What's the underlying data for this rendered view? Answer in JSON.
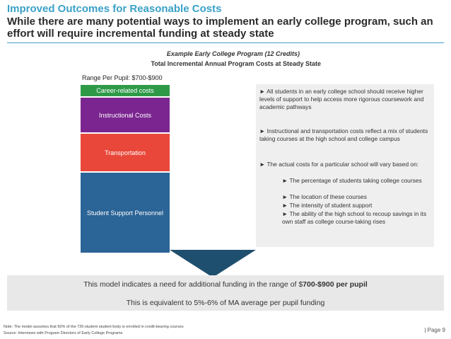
{
  "header": {
    "title": "Improved Outcomes for Reasonable Costs",
    "subtitle": "While there are many potential ways to implement an early college program, such an effort will require incremental funding at steady state"
  },
  "chart": {
    "title": "Example Early College Program (12 Credits)",
    "subtitle": "Total Incremental Annual Program Costs at Steady State",
    "range_label": "Range Per Pupil: $700-$900"
  },
  "chart_data": {
    "type": "bar",
    "stacked": true,
    "categories": [
      "Range Per Pupil: $700-$900"
    ],
    "series": [
      {
        "name": "Career-related costs",
        "color": "#2e9a48",
        "share": 0.07
      },
      {
        "name": "Instructional Costs",
        "color": "#7b2690",
        "share": 0.21
      },
      {
        "name": "Transportation",
        "color": "#e8473a",
        "share": 0.23
      },
      {
        "name": "Student Support Personnel",
        "color": "#2b6496",
        "share": 0.49
      }
    ]
  },
  "notes": {
    "items": [
      {
        "bullet": "►",
        "text": "All students in an early college school should receive higher levels of support to help access more rigorous coursework and academic pathways"
      },
      {
        "bullet": "►",
        "text": "Instructional and transportation costs reflect a mix of students taking courses at the high school and college campus"
      },
      {
        "bullet": "►",
        "text": "The actual costs for a particular school will vary based on:"
      }
    ],
    "sub_items": [
      {
        "bullet": "►",
        "text": "The percentage of students taking college courses"
      },
      {
        "bullet": "►",
        "text": "The location of these courses"
      },
      {
        "bullet": "►",
        "text": "The intensity of student support"
      },
      {
        "bullet": "►",
        "text": "The ability of the high school to recoup savings in its own staff as college course-taking rises"
      }
    ]
  },
  "conclusion": {
    "line1_prefix": "This model indicates a need for additional funding in the range of $",
    "line1_bold": "700-$900 per pupil",
    "line2": "This is equivalent to 5%-6% of MA average per pupil funding"
  },
  "footer": {
    "note": "Note: The model assumes that 50% of the 720-student student body is enrolled in credit-bearing courses",
    "source": "Source: Interviews with Program Directors of Early College Programs",
    "page": "| Page 9"
  },
  "colors": {
    "accent": "#3aa1c7",
    "chevron": "#1f4f6e"
  }
}
